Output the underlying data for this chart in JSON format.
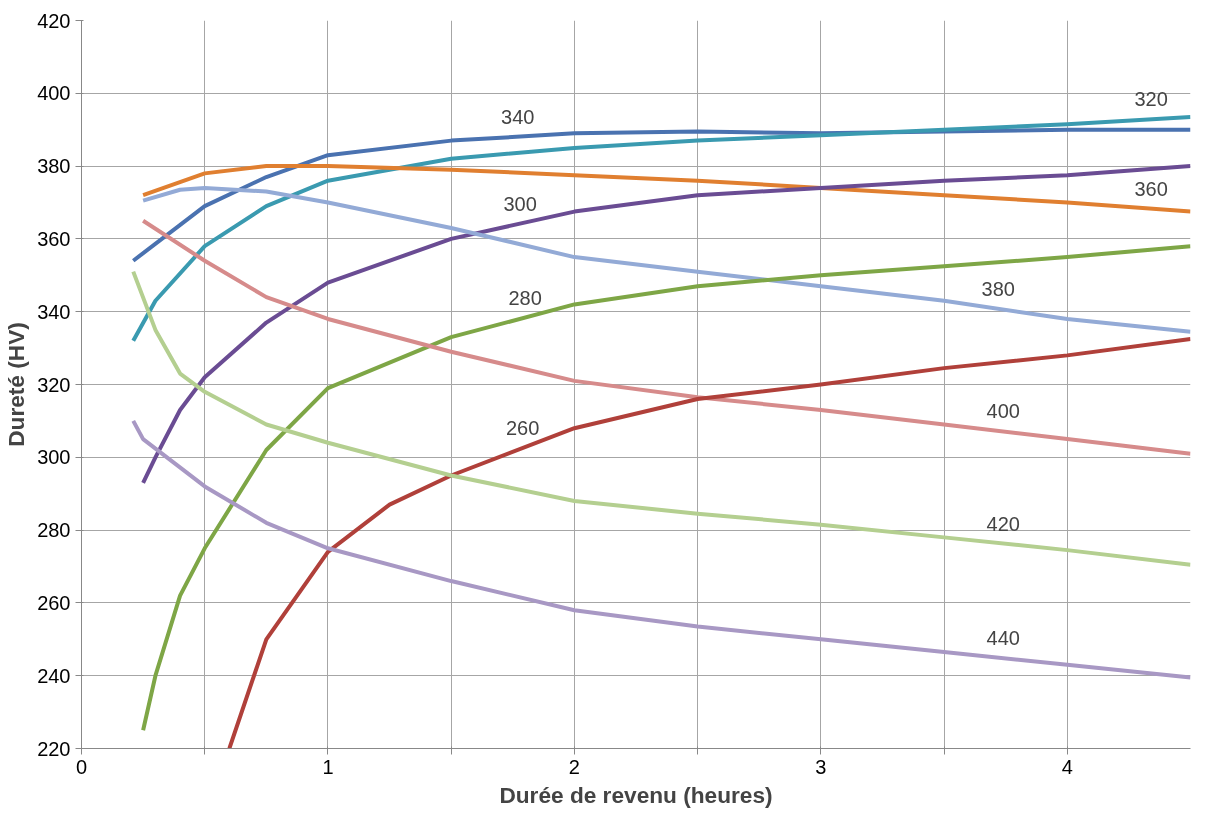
{
  "chart_data": {
    "type": "line",
    "xlabel": "Durée de revenu (heures)",
    "ylabel": "Dureté (HV)",
    "xlim": [
      0,
      4.5
    ],
    "ylim": [
      220,
      420
    ],
    "xticks": [
      0,
      {
        "value": 0.5,
        "label": null
      },
      1,
      {
        "value": 1.5,
        "label": null
      },
      2,
      {
        "value": 2.5,
        "label": null
      },
      3,
      {
        "value": 3.5,
        "label": null
      },
      4
    ],
    "yticks": [
      220,
      240,
      260,
      280,
      300,
      320,
      340,
      360,
      380,
      400,
      420
    ],
    "grid": true,
    "marker": "none",
    "line_style": "solid",
    "series": [
      {
        "color": "#4a72b0",
        "x": [
          0.21,
          0.5,
          0.75,
          1,
          1.5,
          2,
          2.5,
          3,
          3.5,
          4,
          4.5
        ],
        "values": [
          354,
          369,
          377,
          383,
          387,
          389,
          389.5,
          389,
          389.5,
          390,
          390
        ]
      },
      {
        "color": "#3a9ab0",
        "x": [
          0.21,
          0.3,
          0.5,
          0.75,
          1,
          1.5,
          2,
          2.5,
          3,
          3.5,
          4,
          4.5
        ],
        "values": [
          332,
          343,
          358,
          369,
          376,
          382,
          385,
          387,
          388.5,
          390,
          391.5,
          393.5
        ]
      },
      {
        "color": "#e07f30",
        "x": [
          0.25,
          0.5,
          0.75,
          1,
          1.5,
          2,
          2.5,
          3,
          3.5,
          4,
          4.5
        ],
        "values": [
          372,
          378,
          380,
          380,
          379,
          377.5,
          376,
          374,
          372,
          370,
          367.5
        ]
      },
      {
        "color": "#6a4c93",
        "x": [
          0.25,
          0.3,
          0.4,
          0.5,
          0.75,
          1,
          1.5,
          2,
          2.5,
          3,
          3.5,
          4,
          4.5
        ],
        "values": [
          293,
          300,
          313,
          322,
          337,
          348,
          360,
          367.5,
          372,
          374,
          376,
          377.5,
          380
        ]
      },
      {
        "color": "#93aad6",
        "x": [
          0.25,
          0.4,
          0.5,
          0.75,
          1,
          1.5,
          2,
          2.5,
          3,
          3.5,
          4,
          4.5
        ],
        "values": [
          370.5,
          373.5,
          374,
          373,
          370,
          363,
          355,
          351,
          347,
          343,
          338,
          334.5
        ]
      },
      {
        "color": "#7ea646",
        "x": [
          0.25,
          0.3,
          0.4,
          0.5,
          0.75,
          1,
          1.5,
          2,
          2.5,
          3,
          3.5,
          4,
          4.5
        ],
        "values": [
          225,
          240,
          262,
          275,
          302,
          319,
          333,
          342,
          347,
          350,
          352.5,
          355,
          358
        ]
      },
      {
        "color": "#d68b8b",
        "x": [
          0.25,
          0.5,
          0.75,
          1,
          1.5,
          2,
          2.5,
          3,
          3.5,
          4,
          4.5
        ],
        "values": [
          365,
          354,
          344,
          338,
          329,
          321,
          316.5,
          313,
          309,
          305,
          301
        ]
      },
      {
        "color": "#b0403a",
        "x": [
          0.6,
          0.75,
          1,
          1.25,
          1.5,
          2,
          2.5,
          3,
          3.5,
          4,
          4.5
        ],
        "values": [
          220,
          250,
          274,
          287,
          295,
          308,
          316,
          320,
          324.5,
          328,
          332.5
        ]
      },
      {
        "color": "#b4cf90",
        "x": [
          0.21,
          0.3,
          0.4,
          0.5,
          0.75,
          1,
          1.5,
          2,
          2.5,
          3,
          3.5,
          4,
          4.5
        ],
        "values": [
          351,
          335,
          323,
          318,
          309,
          304,
          295,
          288,
          284.5,
          281.5,
          278,
          274.5,
          270.5
        ]
      },
      {
        "color": "#a898c4",
        "x": [
          0.21,
          0.25,
          0.5,
          0.75,
          1,
          1.5,
          2,
          2.5,
          3,
          3.5,
          4,
          4.5
        ],
        "values": [
          310,
          305,
          292,
          282,
          275,
          266,
          258,
          253.5,
          250,
          246.5,
          243,
          239.5
        ]
      }
    ],
    "annotations": [
      {
        "text": "340",
        "x": 1.77,
        "y": 388.1
      },
      {
        "text": "320",
        "x": 4.34,
        "y": 392.9
      },
      {
        "text": "360",
        "x": 4.34,
        "y": 368.3
      },
      {
        "text": "300",
        "x": 1.78,
        "y": 364.2
      },
      {
        "text": "380",
        "x": 3.72,
        "y": 340.8
      },
      {
        "text": "280",
        "x": 1.8,
        "y": 338.4
      },
      {
        "text": "400",
        "x": 3.74,
        "y": 307.1
      },
      {
        "text": "260",
        "x": 1.79,
        "y": 302.5
      },
      {
        "text": "420",
        "x": 3.74,
        "y": 276.3
      },
      {
        "text": "440",
        "x": 3.74,
        "y": 244.8
      }
    ]
  }
}
